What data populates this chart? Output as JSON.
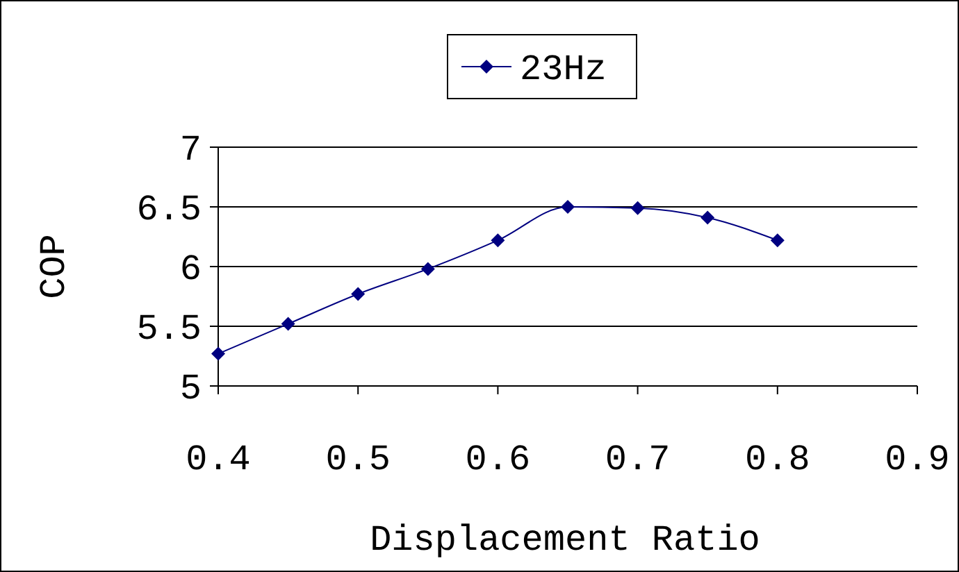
{
  "chart_data": {
    "type": "line",
    "xlabel": "Displacement Ratio",
    "ylabel": "COP",
    "x": [
      0.4,
      0.45,
      0.5,
      0.55,
      0.6,
      0.65,
      0.7,
      0.75,
      0.8
    ],
    "series": [
      {
        "name": "23Hz",
        "color": "#000080",
        "values": [
          5.27,
          5.52,
          5.77,
          5.98,
          6.22,
          6.5,
          6.49,
          6.41,
          6.22
        ]
      }
    ],
    "xlim": [
      0.4,
      0.9
    ],
    "xticks": [
      0.4,
      0.5,
      0.6,
      0.7,
      0.8,
      0.9
    ],
    "ylim": [
      5,
      7
    ],
    "yticks": [
      5,
      5.5,
      6,
      6.5,
      7
    ],
    "grid": "y",
    "legend": "top",
    "marker": "diamond",
    "line_style": "solid"
  }
}
